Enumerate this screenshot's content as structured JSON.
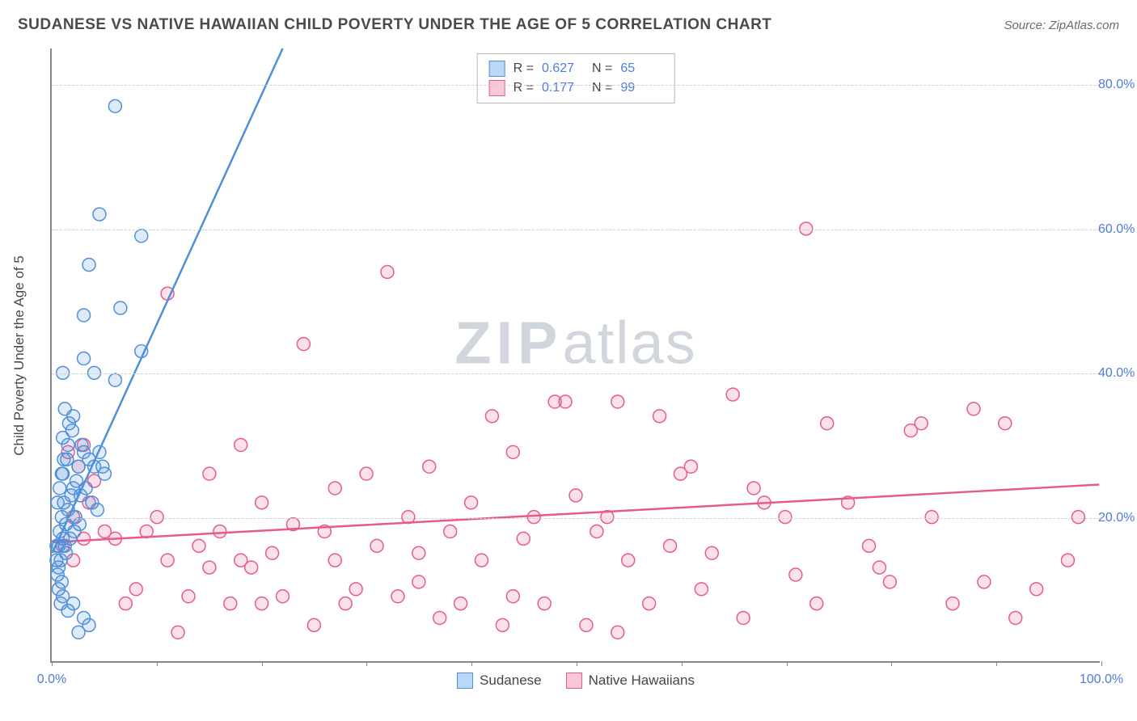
{
  "title": "SUDANESE VS NATIVE HAWAIIAN CHILD POVERTY UNDER THE AGE OF 5 CORRELATION CHART",
  "source_label": "Source: ZipAtlas.com",
  "watermark": {
    "bold": "ZIP",
    "light": "atlas"
  },
  "chart": {
    "type": "scatter",
    "y_axis_label": "Child Poverty Under the Age of 5",
    "xlim": [
      0,
      100
    ],
    "ylim": [
      0,
      85
    ],
    "x_ticks": [
      0,
      10,
      20,
      30,
      40,
      50,
      60,
      70,
      80,
      90,
      100
    ],
    "x_tick_labels_shown": {
      "0": "0.0%",
      "100": "100.0%"
    },
    "y_gridlines": [
      20,
      40,
      60,
      80
    ],
    "y_tick_labels": {
      "20": "20.0%",
      "40": "40.0%",
      "60": "60.0%",
      "80": "80.0%"
    },
    "background_color": "#ffffff",
    "grid_color": "#cfcfcf",
    "axis_color": "#888888",
    "tick_label_color": "#4f7bd9",
    "marker_radius": 8,
    "marker_fill_opacity": 0.18,
    "marker_stroke_width": 1.5,
    "trend_line_width": 2.5,
    "series": {
      "sudanese": {
        "label": "Sudanese",
        "color": "#4f8fd9",
        "fill": "#bcd6f5",
        "R": "0.627",
        "N": "65",
        "trend": {
          "x1": 0,
          "y1": 15,
          "x2": 22,
          "y2": 85
        },
        "points": [
          [
            0.4,
            16
          ],
          [
            0.5,
            12
          ],
          [
            0.6,
            13
          ],
          [
            0.8,
            14
          ],
          [
            0.7,
            18
          ],
          [
            1.0,
            17
          ],
          [
            1.2,
            16
          ],
          [
            0.9,
            20
          ],
          [
            1.1,
            22
          ],
          [
            1.3,
            19
          ],
          [
            1.5,
            21
          ],
          [
            0.6,
            10
          ],
          [
            0.9,
            11
          ],
          [
            1.8,
            23
          ],
          [
            2.0,
            24
          ],
          [
            2.2,
            20
          ],
          [
            1.0,
            26
          ],
          [
            1.4,
            28
          ],
          [
            2.5,
            27
          ],
          [
            3.0,
            29
          ],
          [
            1.0,
            31
          ],
          [
            1.6,
            33
          ],
          [
            2.8,
            30
          ],
          [
            3.5,
            28
          ],
          [
            4.0,
            27
          ],
          [
            1.2,
            35
          ],
          [
            2.0,
            34
          ],
          [
            4.5,
            29
          ],
          [
            5.0,
            26
          ],
          [
            4.8,
            27
          ],
          [
            0.8,
            8
          ],
          [
            1.0,
            9
          ],
          [
            1.5,
            7
          ],
          [
            2.0,
            8
          ],
          [
            3.0,
            6
          ],
          [
            2.5,
            4
          ],
          [
            3.5,
            5
          ],
          [
            1.0,
            40
          ],
          [
            4.0,
            40
          ],
          [
            6.0,
            39
          ],
          [
            3.0,
            42
          ],
          [
            8.5,
            43
          ],
          [
            3.0,
            48
          ],
          [
            6.5,
            49
          ],
          [
            3.5,
            55
          ],
          [
            8.5,
            59
          ],
          [
            4.5,
            62
          ],
          [
            6.0,
            77
          ],
          [
            1.3,
            15
          ],
          [
            1.7,
            17
          ],
          [
            2.1,
            18
          ],
          [
            2.6,
            19
          ],
          [
            0.5,
            22
          ],
          [
            0.7,
            24
          ],
          [
            0.9,
            26
          ],
          [
            1.1,
            28
          ],
          [
            1.5,
            30
          ],
          [
            1.9,
            32
          ],
          [
            0.4,
            14
          ],
          [
            0.6,
            16
          ],
          [
            2.3,
            25
          ],
          [
            2.7,
            23
          ],
          [
            3.2,
            24
          ],
          [
            3.8,
            22
          ],
          [
            4.3,
            21
          ]
        ]
      },
      "hawaiian": {
        "label": "Native Hawaiians",
        "color": "#e75a8c",
        "fill": "#f7c8d8",
        "R": "0.177",
        "N": "99",
        "trend": {
          "x1": 0,
          "y1": 16.5,
          "x2": 100,
          "y2": 24.5
        },
        "points": [
          [
            1,
            16
          ],
          [
            2,
            14
          ],
          [
            3,
            17
          ],
          [
            1.5,
            29
          ],
          [
            2.5,
            27
          ],
          [
            3,
            30
          ],
          [
            4,
            25
          ],
          [
            2,
            20
          ],
          [
            3.5,
            22
          ],
          [
            5,
            18
          ],
          [
            6,
            17
          ],
          [
            7,
            8
          ],
          [
            8,
            10
          ],
          [
            9,
            18
          ],
          [
            10,
            20
          ],
          [
            11,
            14
          ],
          [
            12,
            4
          ],
          [
            13,
            9
          ],
          [
            14,
            16
          ],
          [
            15,
            13
          ],
          [
            11,
            51
          ],
          [
            16,
            18
          ],
          [
            17,
            8
          ],
          [
            18,
            14
          ],
          [
            19,
            13
          ],
          [
            20,
            22
          ],
          [
            20,
            8
          ],
          [
            21,
            15
          ],
          [
            22,
            9
          ],
          [
            23,
            19
          ],
          [
            24,
            44
          ],
          [
            25,
            5
          ],
          [
            26,
            18
          ],
          [
            27,
            14
          ],
          [
            28,
            8
          ],
          [
            29,
            10
          ],
          [
            30,
            26
          ],
          [
            31,
            16
          ],
          [
            32,
            54
          ],
          [
            33,
            9
          ],
          [
            34,
            20
          ],
          [
            35,
            15
          ],
          [
            36,
            27
          ],
          [
            37,
            6
          ],
          [
            38,
            18
          ],
          [
            39,
            8
          ],
          [
            40,
            22
          ],
          [
            41,
            14
          ],
          [
            42,
            34
          ],
          [
            43,
            5
          ],
          [
            44,
            29
          ],
          [
            45,
            17
          ],
          [
            46,
            20
          ],
          [
            47,
            8
          ],
          [
            48,
            36
          ],
          [
            49,
            36
          ],
          [
            50,
            23
          ],
          [
            51,
            5
          ],
          [
            52,
            18
          ],
          [
            53,
            20
          ],
          [
            54,
            36
          ],
          [
            55,
            14
          ],
          [
            57,
            8
          ],
          [
            58,
            34
          ],
          [
            59,
            16
          ],
          [
            60,
            26
          ],
          [
            61,
            27
          ],
          [
            62,
            10
          ],
          [
            63,
            15
          ],
          [
            65,
            37
          ],
          [
            66,
            6
          ],
          [
            67,
            24
          ],
          [
            68,
            22
          ],
          [
            70,
            20
          ],
          [
            71,
            12
          ],
          [
            72,
            60
          ],
          [
            73,
            8
          ],
          [
            74,
            33
          ],
          [
            76,
            22
          ],
          [
            78,
            16
          ],
          [
            79,
            13
          ],
          [
            80,
            11
          ],
          [
            82,
            32
          ],
          [
            83,
            33
          ],
          [
            84,
            20
          ],
          [
            86,
            8
          ],
          [
            88,
            35
          ],
          [
            89,
            11
          ],
          [
            91,
            33
          ],
          [
            92,
            6
          ],
          [
            94,
            10
          ],
          [
            97,
            14
          ],
          [
            98,
            20
          ],
          [
            15,
            26
          ],
          [
            18,
            30
          ],
          [
            27,
            24
          ],
          [
            35,
            11
          ],
          [
            44,
            9
          ],
          [
            54,
            4
          ]
        ]
      }
    },
    "legend": {
      "stats_rows": [
        {
          "series": "sudanese",
          "r_label": "R =",
          "n_label": "N ="
        },
        {
          "series": "hawaiian",
          "r_label": "R =",
          "n_label": "N ="
        }
      ],
      "border_color": "#b8b8b8"
    }
  }
}
